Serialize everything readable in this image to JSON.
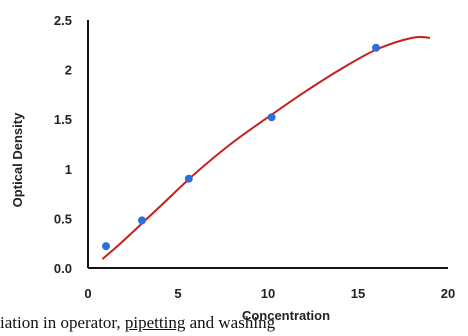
{
  "chart_data": {
    "type": "scatter",
    "xlabel": "Concentration",
    "ylabel": "Optical Density",
    "xlim": [
      0,
      20
    ],
    "ylim": [
      0,
      2.5
    ],
    "x_ticks": [
      "0",
      "5",
      "10",
      "15",
      "20"
    ],
    "y_ticks": [
      "0.0",
      "0.5",
      "1",
      "1.5",
      "2",
      "2.5"
    ],
    "grid": false,
    "colors": {
      "points": "#2a6fdb",
      "curve": "#c81e1e",
      "axis": "#111111"
    },
    "series": [
      {
        "type": "scatter",
        "x": [
          1,
          3,
          5.6,
          10.2,
          16
        ],
        "y": [
          0.22,
          0.48,
          0.9,
          1.52,
          2.22
        ]
      },
      {
        "type": "line",
        "x": [
          0.8,
          2,
          4,
          6,
          8,
          10,
          12,
          14,
          16,
          18,
          19
        ],
        "y": [
          0.09,
          0.28,
          0.62,
          0.96,
          1.26,
          1.52,
          1.77,
          2.0,
          2.2,
          2.32,
          2.32
        ]
      }
    ]
  },
  "footer_text": {
    "a": "iation in operator, ",
    "b": "pipetting",
    "c": " and washing"
  }
}
